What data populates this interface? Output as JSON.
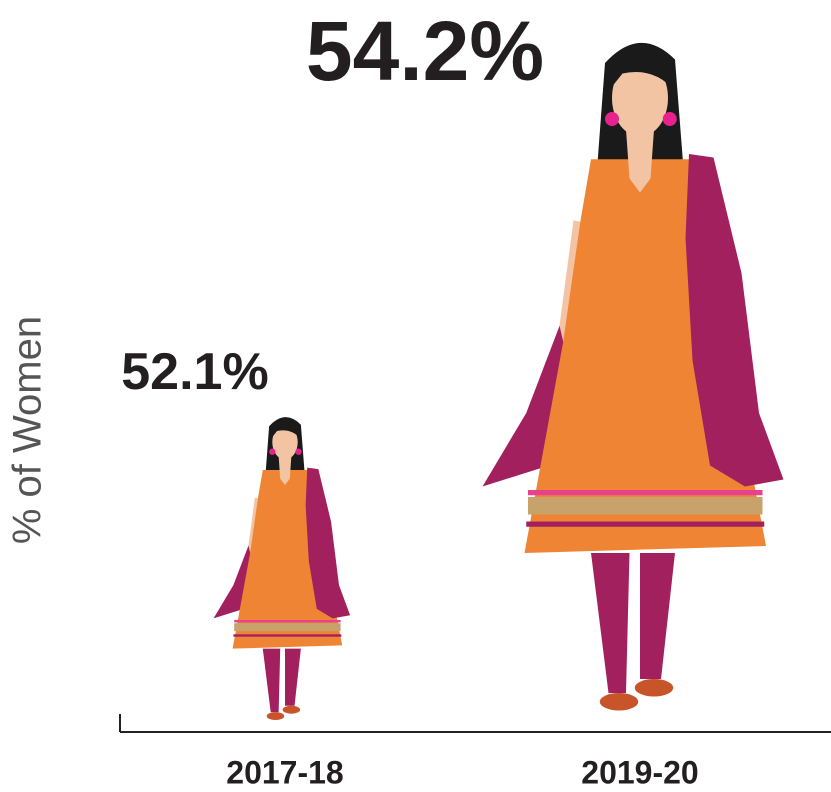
{
  "chart_data": {
    "type": "pictograph",
    "y_label": "% of Women",
    "categories": [
      "2017-18",
      "2019-20"
    ],
    "values": [
      52.1,
      54.2
    ],
    "value_labels": [
      "52.1%",
      "54.2%"
    ],
    "colors": {
      "dress": "#ef8534",
      "dupatta": "#a3205f",
      "skin": "#f2c4a4",
      "hair": "#1a1a1a"
    }
  }
}
